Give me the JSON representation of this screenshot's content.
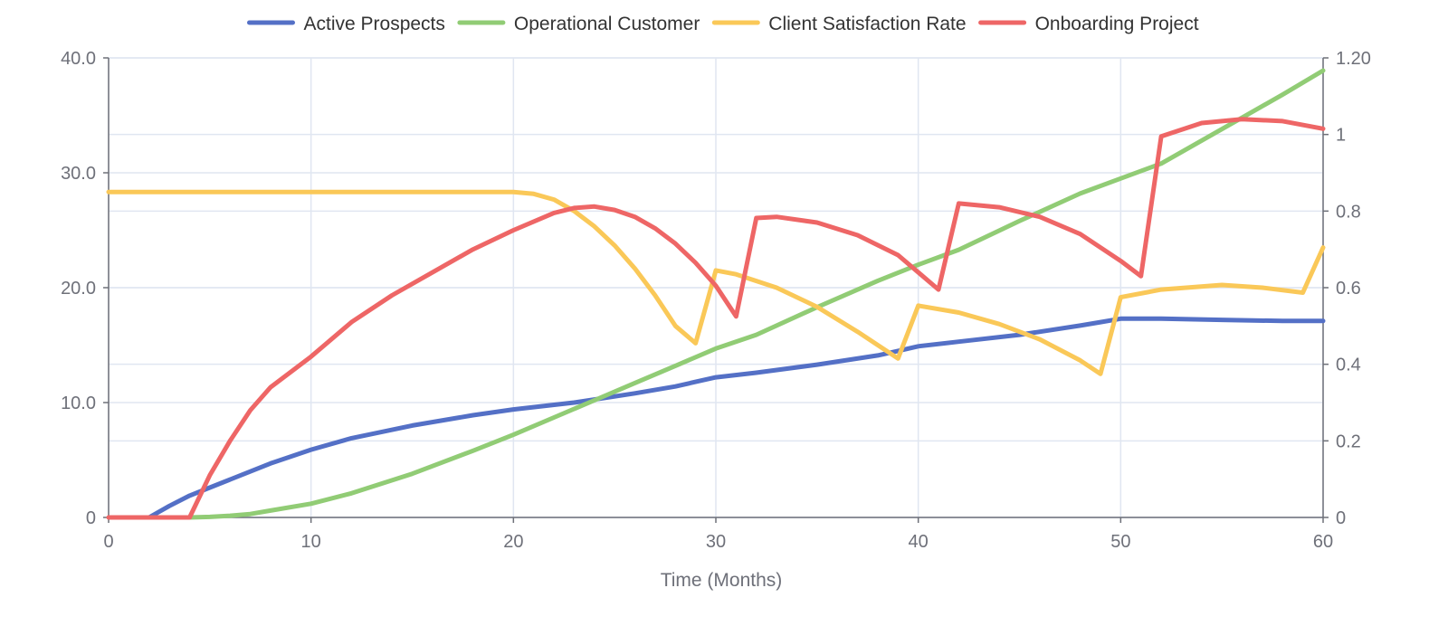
{
  "chart_data": {
    "type": "line",
    "title": "",
    "xlabel": "Time (Months)",
    "ylabel_left": "",
    "ylabel_right": "",
    "xlim": [
      0,
      60
    ],
    "ylim_left": [
      0,
      40
    ],
    "ylim_right": [
      0,
      1.2
    ],
    "x_ticks": [
      "0",
      "10",
      "20",
      "30",
      "40",
      "50",
      "60"
    ],
    "y_left_ticks": [
      "0",
      "10.0",
      "20.0",
      "30.0",
      "40.0"
    ],
    "y_right_ticks": [
      "0",
      "0.2",
      "0.4",
      "0.6",
      "0.8",
      "1",
      "1.20"
    ],
    "grid": true,
    "legend_position": "top-center",
    "series": [
      {
        "name": "Active Prospects",
        "color": "#5470c6",
        "axis": "left",
        "x": [
          2,
          3,
          4,
          5,
          6,
          8,
          10,
          12,
          15,
          18,
          20,
          23,
          26,
          28,
          29,
          30,
          32,
          35,
          38,
          39,
          40,
          42,
          45,
          48,
          49,
          50,
          52,
          55,
          58,
          60
        ],
        "y": [
          0,
          1.0,
          1.9,
          2.6,
          3.3,
          4.7,
          5.9,
          6.9,
          8.0,
          8.9,
          9.4,
          10.0,
          10.8,
          11.4,
          11.8,
          12.2,
          12.6,
          13.3,
          14.1,
          14.5,
          14.9,
          15.3,
          15.9,
          16.7,
          17.0,
          17.3,
          17.3,
          17.2,
          17.1,
          17.1
        ]
      },
      {
        "name": "Operational Customer",
        "color": "#91cc75",
        "axis": "left",
        "x": [
          4,
          5,
          6,
          7,
          8,
          10,
          12,
          15,
          18,
          20,
          22,
          24,
          26,
          28,
          30,
          32,
          35,
          38,
          40,
          42,
          45,
          48,
          50,
          52,
          55,
          58,
          60
        ],
        "y": [
          0,
          0.05,
          0.15,
          0.3,
          0.6,
          1.2,
          2.1,
          3.8,
          5.8,
          7.2,
          8.7,
          10.2,
          11.7,
          13.2,
          14.7,
          15.9,
          18.3,
          20.6,
          22.0,
          23.3,
          25.8,
          28.2,
          29.5,
          30.8,
          33.8,
          36.8,
          38.9
        ]
      },
      {
        "name": "Client Satisfaction Rate",
        "color": "#fac858",
        "axis": "right",
        "x": [
          0,
          10,
          20,
          21,
          22,
          23,
          24,
          25,
          26,
          27,
          28,
          29,
          30,
          31,
          33,
          35,
          37,
          39,
          40,
          42,
          44,
          46,
          48,
          49,
          50,
          52,
          55,
          57,
          59,
          60
        ],
        "y": [
          0.85,
          0.85,
          0.85,
          0.845,
          0.83,
          0.8,
          0.76,
          0.71,
          0.65,
          0.58,
          0.5,
          0.455,
          0.645,
          0.635,
          0.6,
          0.55,
          0.485,
          0.415,
          0.553,
          0.535,
          0.505,
          0.465,
          0.41,
          0.375,
          0.575,
          0.595,
          0.607,
          0.6,
          0.587,
          0.705
        ]
      },
      {
        "name": "Onboarding Project",
        "color": "#ee6666",
        "axis": "right",
        "x": [
          0,
          4,
          5,
          6,
          7,
          8,
          10,
          12,
          14,
          16,
          18,
          20,
          22,
          23,
          24,
          25,
          26,
          27,
          28,
          29,
          30,
          31,
          32,
          33,
          35,
          37,
          39,
          41,
          42,
          44,
          46,
          48,
          50,
          51,
          52,
          54,
          56,
          58,
          60
        ],
        "y": [
          0,
          0,
          0.11,
          0.2,
          0.28,
          0.34,
          0.42,
          0.51,
          0.58,
          0.64,
          0.7,
          0.75,
          0.795,
          0.808,
          0.812,
          0.803,
          0.785,
          0.755,
          0.715,
          0.665,
          0.605,
          0.525,
          0.782,
          0.785,
          0.77,
          0.737,
          0.685,
          0.595,
          0.82,
          0.81,
          0.785,
          0.74,
          0.67,
          0.63,
          0.995,
          1.03,
          1.04,
          1.035,
          1.015
        ]
      }
    ]
  }
}
